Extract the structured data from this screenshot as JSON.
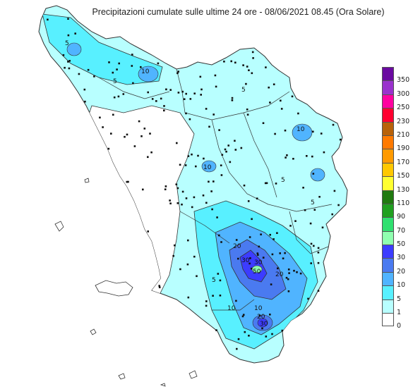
{
  "title": "Precipitazioni cumulate sulle ultime 24 ore - 08/06/2021 08.45 (Ora Solare)",
  "legend": {
    "classes": [
      {
        "label": "350",
        "color": "#6a0aa0"
      },
      {
        "label": "300",
        "color": "#9a32cd"
      },
      {
        "label": "250",
        "color": "#ff00a0"
      },
      {
        "label": "230",
        "color": "#ff0030"
      },
      {
        "label": "210",
        "color": "#b8620a"
      },
      {
        "label": "190",
        "color": "#ff7a00"
      },
      {
        "label": "170",
        "color": "#ff9a00"
      },
      {
        "label": "150",
        "color": "#ffc800"
      },
      {
        "label": "130",
        "color": "#ffff30"
      },
      {
        "label": "110",
        "color": "#207a10"
      },
      {
        "label": "90",
        "color": "#20a020"
      },
      {
        "label": "70",
        "color": "#30e070"
      },
      {
        "label": "50",
        "color": "#90ffb0"
      },
      {
        "label": "30",
        "color": "#3c3cff"
      },
      {
        "label": "20",
        "color": "#4a7af0"
      },
      {
        "label": "10",
        "color": "#50b4ff"
      },
      {
        "label": "5",
        "color": "#58f0ff"
      },
      {
        "label": "1",
        "color": "#b8ffff"
      },
      {
        "label": "0",
        "color": "#ffffff"
      }
    ]
  },
  "contour_labels": [
    "5",
    "10",
    "5",
    "10",
    "5",
    "5",
    "5",
    "10",
    "20",
    "30",
    "30",
    "50",
    "20",
    "10",
    "20",
    "30",
    "10",
    "5"
  ],
  "colors": {
    "outline": "#333333",
    "station": "#111111"
  }
}
